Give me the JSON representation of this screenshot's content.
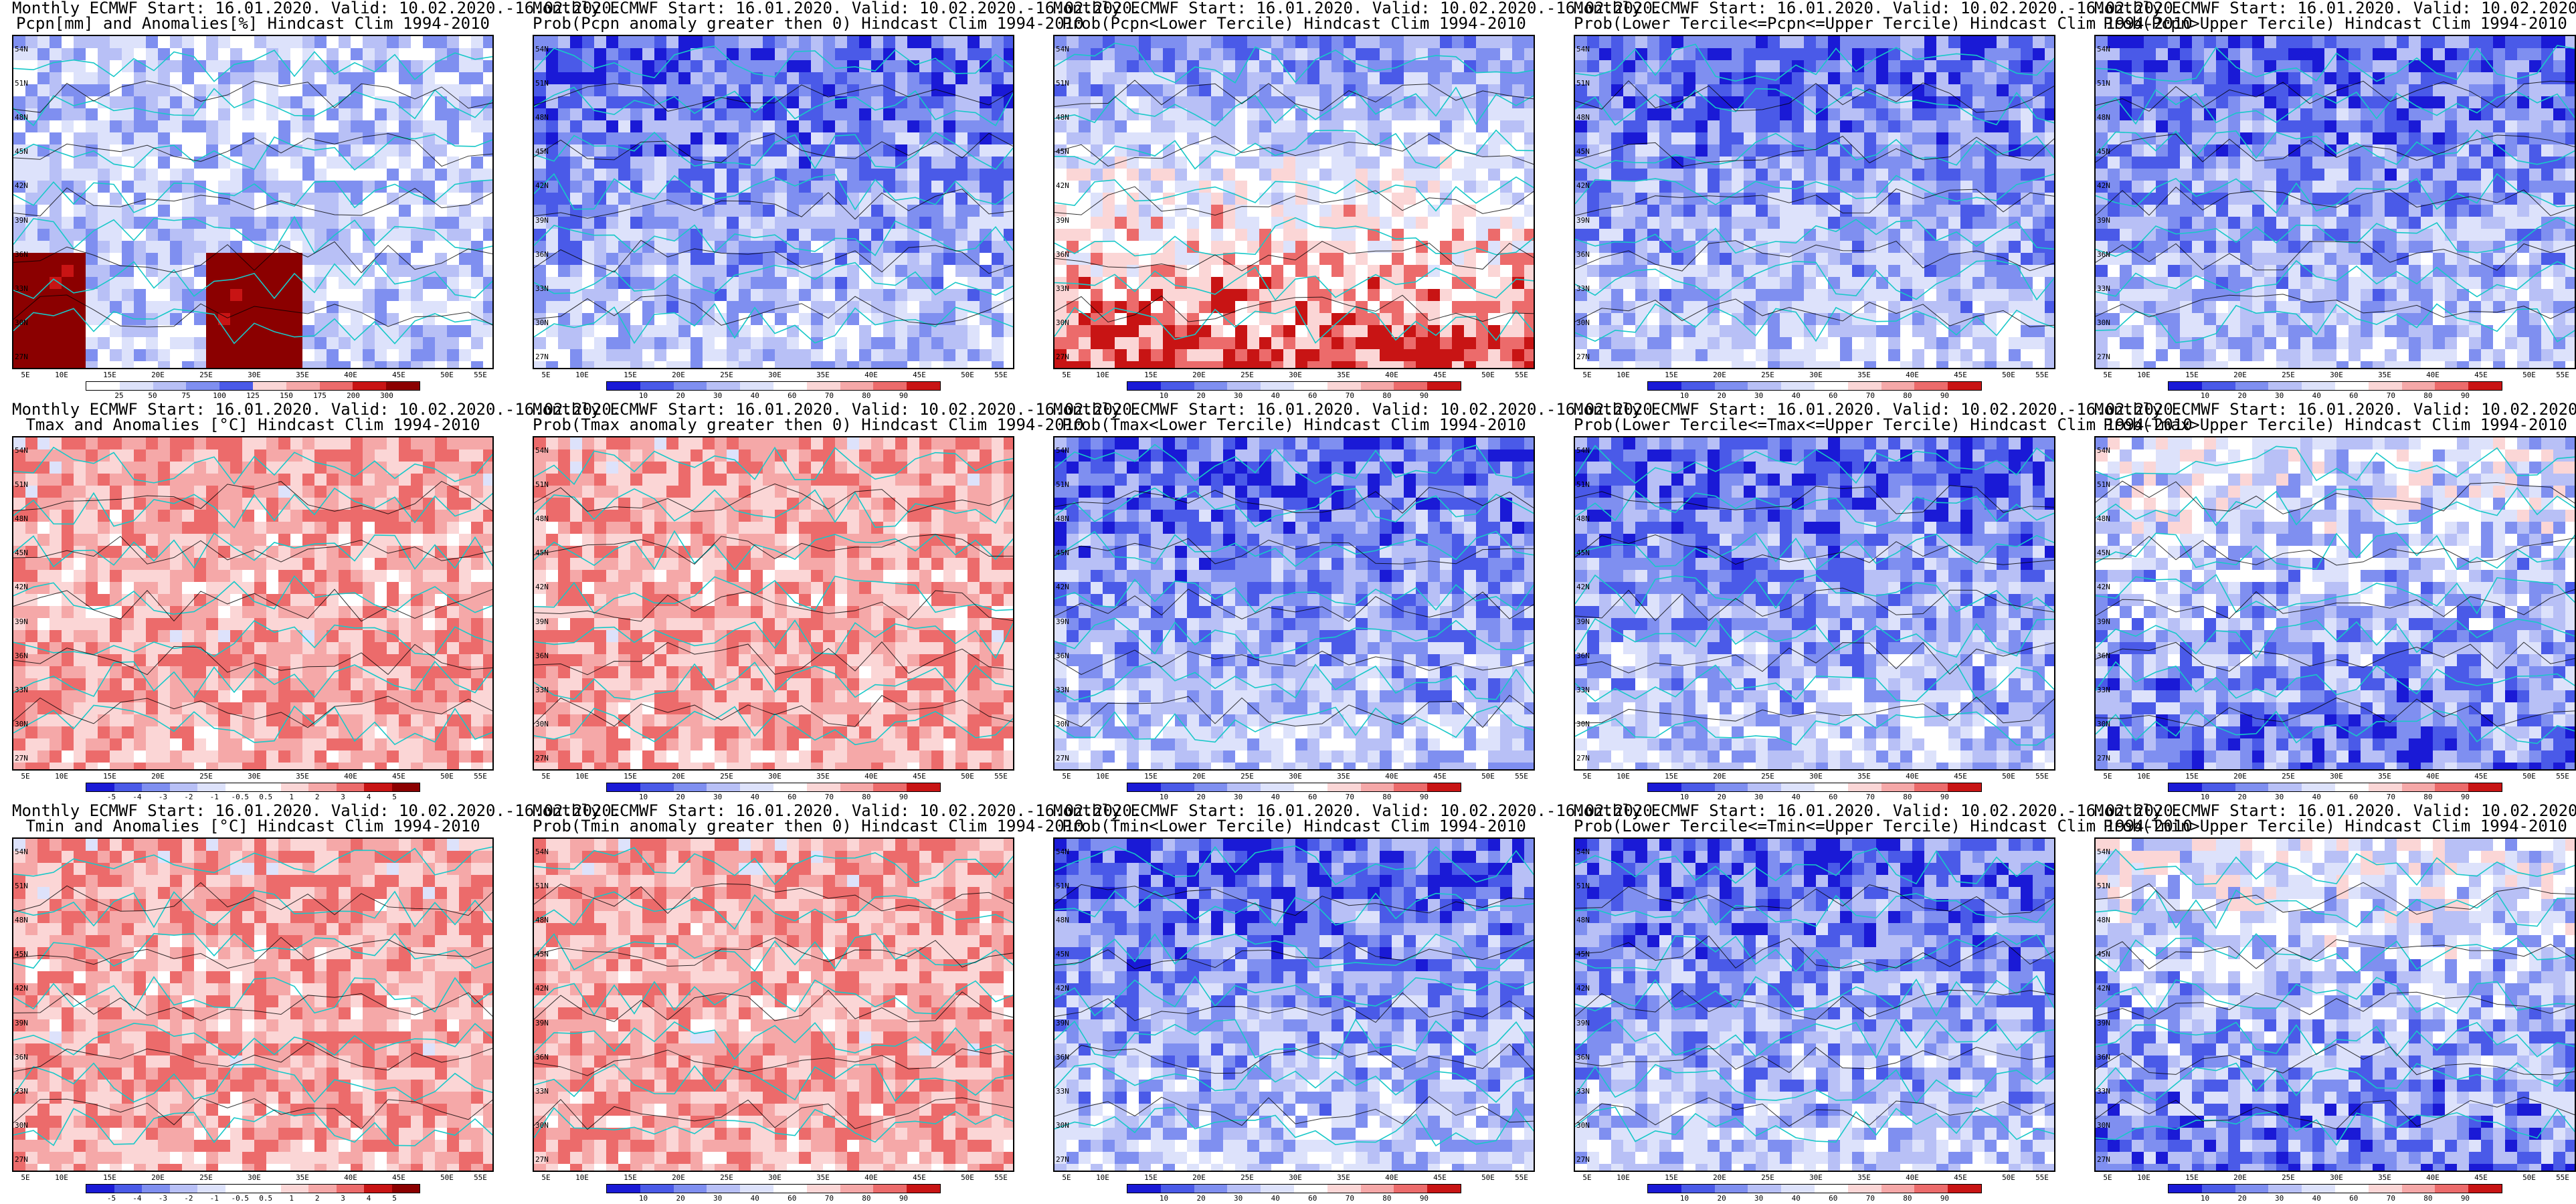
{
  "title_prefix": "Monthly ECMWF Start: 16.01.2020. Valid: 10.02.2020.-16.02.2020.",
  "panels": [
    {
      "line2": "Pcpn[mm] and Anomalies[%] Hindcast Clim 1994-2010",
      "palette": "pcpn",
      "cbar": [
        "25",
        "50",
        "75",
        "100",
        "125",
        "150",
        "175",
        "200",
        "300"
      ]
    },
    {
      "line2": "Prob(Pcpn anomaly greater then 0) Hindcast Clim 1994-2010",
      "palette": "prob_low",
      "cbar": [
        "10",
        "20",
        "30",
        "40",
        "60",
        "70",
        "80",
        "90"
      ]
    },
    {
      "line2": "Prob(Pcpn<Lower Tercile) Hindcast Clim 1994-2010",
      "palette": "prob_mixed",
      "cbar": [
        "10",
        "20",
        "30",
        "40",
        "60",
        "70",
        "80",
        "90"
      ]
    },
    {
      "line2": "Prob(Lower Tercile<=Pcpn<=Upper Tercile) Hindcast Clim 1994-2010",
      "palette": "prob_low",
      "cbar": [
        "10",
        "20",
        "30",
        "40",
        "60",
        "70",
        "80",
        "90"
      ]
    },
    {
      "line2": "Prob(Pcpn>Upper Tercile) Hindcast Clim 1994-2010",
      "palette": "prob_low",
      "cbar": [
        "10",
        "20",
        "30",
        "40",
        "60",
        "70",
        "80",
        "90"
      ]
    },
    {
      "line2": "Tmax and Anomalies [°C] Hindcast Clim 1994-2010",
      "palette": "warm",
      "cbar": [
        "-5",
        "-4",
        "-3",
        "-2",
        "-1",
        "-0.5",
        "0.5",
        "1",
        "2",
        "3",
        "4",
        "5"
      ]
    },
    {
      "line2": "Prob(Tmax anomaly greater then 0) Hindcast Clim 1994-2010",
      "palette": "warm",
      "cbar": [
        "10",
        "20",
        "30",
        "40",
        "60",
        "70",
        "80",
        "90"
      ]
    },
    {
      "line2": "Prob(Tmax<Lower Tercile) Hindcast Clim 1994-2010",
      "palette": "cold",
      "cbar": [
        "10",
        "20",
        "30",
        "40",
        "60",
        "70",
        "80",
        "90"
      ]
    },
    {
      "line2": "Prob(Lower Tercile<=Tmax<=Upper Tercile) Hindcast Clim 1994-2010",
      "palette": "prob_low",
      "cbar": [
        "10",
        "20",
        "30",
        "40",
        "60",
        "70",
        "80",
        "90"
      ]
    },
    {
      "line2": "Prob(Tmax>Upper Tercile) Hindcast Clim 1994-2010",
      "palette": "prob_mixed2",
      "cbar": [
        "10",
        "20",
        "30",
        "40",
        "60",
        "70",
        "80",
        "90"
      ]
    },
    {
      "line2": "Tmin and Anomalies [°C] Hindcast Clim 1994-2010",
      "palette": "warm",
      "cbar": [
        "-5",
        "-4",
        "-3",
        "-2",
        "-1",
        "-0.5",
        "0.5",
        "1",
        "2",
        "3",
        "4",
        "5"
      ]
    },
    {
      "line2": "Prob(Tmin anomaly greater then 0) Hindcast Clim 1994-2010",
      "palette": "warm",
      "cbar": [
        "10",
        "20",
        "30",
        "40",
        "60",
        "70",
        "80",
        "90"
      ]
    },
    {
      "line2": "Prob(Tmin<Lower Tercile) Hindcast Clim 1994-2010",
      "palette": "cold",
      "cbar": [
        "10",
        "20",
        "30",
        "40",
        "60",
        "70",
        "80",
        "90"
      ]
    },
    {
      "line2": "Prob(Lower Tercile<=Tmin<=Upper Tercile) Hindcast Clim 1994-2010",
      "palette": "prob_low",
      "cbar": [
        "10",
        "20",
        "30",
        "40",
        "60",
        "70",
        "80",
        "90"
      ]
    },
    {
      "line2": "Prob(Tmin>Upper Tercile) Hindcast Clim 1994-2010",
      "palette": "prob_mixed2",
      "cbar": [
        "10",
        "20",
        "30",
        "40",
        "60",
        "70",
        "80",
        "90"
      ]
    }
  ],
  "lat_labels": [
    "54N",
    "51N",
    "48N",
    "45N",
    "42N",
    "39N",
    "36N",
    "33N",
    "30N",
    "27N"
  ],
  "lon_labels": [
    "5E",
    "10E",
    "15E",
    "20E",
    "25E",
    "30E",
    "35E",
    "40E",
    "45E",
    "50E",
    "55E"
  ],
  "colors": {
    "deep_blue": "#1a1ad6",
    "blue": "#4a5ae8",
    "mid_blue": "#7f8ff0",
    "light_blue": "#b8c0f6",
    "pale_blue": "#dde2fb",
    "white": "#ffffff",
    "pale_red": "#fbd6d6",
    "light_red": "#f5a8a8",
    "red": "#ec6b6b",
    "dark_red": "#c81414",
    "deep_red": "#8b0000",
    "coast": "#18c8c8",
    "contour": "#000000"
  }
}
